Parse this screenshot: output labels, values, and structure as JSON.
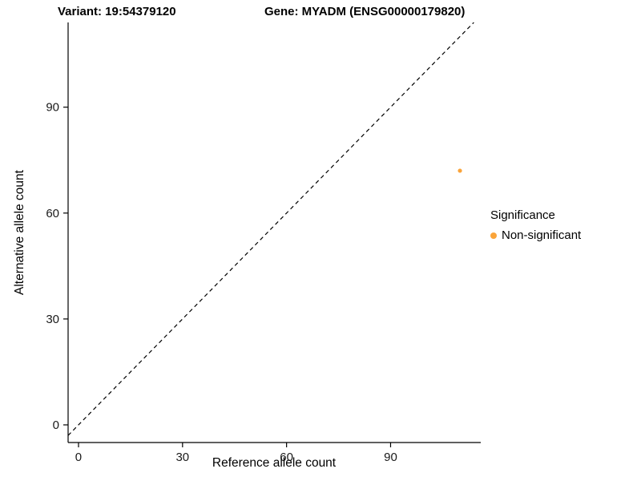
{
  "chart_data": {
    "type": "scatter",
    "title_left": "Variant: 19:54379120",
    "title_right": "Gene: MYADM (ENSG00000179820)",
    "xlabel": "Reference allele count",
    "ylabel": "Alternative allele count",
    "x_ticks": [
      0,
      30,
      60,
      90
    ],
    "y_ticks": [
      0,
      30,
      60,
      90
    ],
    "xlim": [
      -3,
      116
    ],
    "ylim": [
      -5,
      114
    ],
    "grid": "off",
    "identity_line": {
      "style": "dashed",
      "color": "#000000"
    },
    "series": [
      {
        "name": "Non-significant",
        "color": "#FAA43A",
        "points": [
          {
            "x": 110,
            "y": 72
          }
        ]
      }
    ],
    "legend": {
      "title": "Significance",
      "position": "right",
      "entries": [
        {
          "label": "Non-significant",
          "color": "#FAA43A"
        }
      ]
    }
  }
}
